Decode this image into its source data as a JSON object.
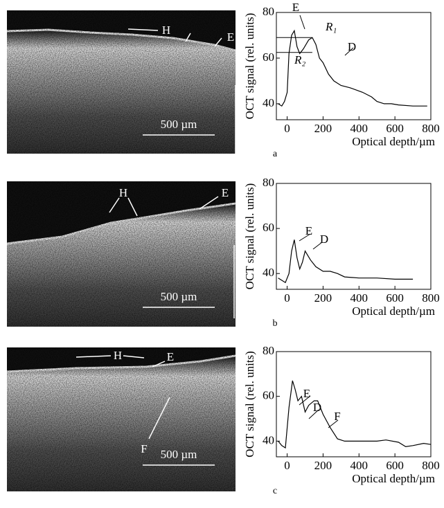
{
  "chart_data": [
    {
      "type": "line",
      "panel": "a",
      "xlabel": "Optical depth/µm",
      "ylabel": "OCT signal (rel. units)",
      "xlim": [
        -60,
        800
      ],
      "ylim": [
        33,
        80
      ],
      "xticks": [
        0,
        200,
        400,
        600,
        800
      ],
      "yticks": [
        40,
        60,
        80
      ],
      "series": [
        {
          "color": "#000000",
          "x": [
            -50,
            -30,
            -15,
            0,
            10,
            25,
            40,
            55,
            70,
            90,
            120,
            140,
            160,
            180,
            200,
            230,
            260,
            300,
            350,
            420,
            470,
            500,
            540,
            580,
            620,
            700,
            780
          ],
          "values": [
            40,
            39,
            41,
            45,
            62,
            70,
            72,
            65,
            62,
            64,
            68,
            69,
            66,
            60,
            58,
            53,
            50,
            48,
            47,
            45,
            43,
            41,
            40,
            40,
            39.5,
            39,
            39
          ]
        }
      ],
      "hlines": [
        {
          "label": "R₁",
          "value": 69
        },
        {
          "label": "R₂",
          "value": 62.5
        }
      ],
      "annotations": [
        "E",
        "D"
      ]
    },
    {
      "type": "line",
      "panel": "b",
      "xlabel": "Optical depth/µm",
      "ylabel": "OCT signal (rel. units)",
      "xlim": [
        -60,
        800
      ],
      "ylim": [
        33,
        80
      ],
      "xticks": [
        0,
        200,
        400,
        600,
        800
      ],
      "yticks": [
        40,
        60,
        80
      ],
      "series": [
        {
          "color": "#000000",
          "x": [
            -50,
            -30,
            -10,
            10,
            25,
            40,
            55,
            70,
            85,
            100,
            115,
            130,
            160,
            200,
            240,
            280,
            320,
            400,
            500,
            600,
            700
          ],
          "values": [
            38,
            37,
            36,
            40,
            50,
            55,
            47,
            42,
            45,
            50,
            48,
            46,
            43,
            41,
            41,
            40,
            38.5,
            38,
            38,
            37.5,
            37.5
          ]
        }
      ],
      "hlines": [],
      "annotations": [
        "E",
        "D"
      ]
    },
    {
      "type": "line",
      "panel": "c",
      "xlabel": "Optical depth/µm",
      "ylabel": "OCT signal (rel. units)",
      "xlim": [
        -60,
        800
      ],
      "ylim": [
        33,
        80
      ],
      "xticks": [
        0,
        200,
        400,
        600,
        800
      ],
      "yticks": [
        40,
        60,
        80
      ],
      "series": [
        {
          "color": "#000000",
          "x": [
            -50,
            -30,
            -10,
            10,
            30,
            45,
            60,
            80,
            100,
            120,
            150,
            170,
            200,
            240,
            280,
            320,
            400,
            500,
            550,
            620,
            660,
            700,
            760,
            800
          ],
          "values": [
            40,
            38,
            37,
            55,
            67,
            63,
            58,
            60,
            53,
            56,
            58,
            58,
            52,
            46,
            41,
            40,
            40,
            40,
            40.5,
            39.5,
            37.5,
            38,
            39,
            38.5
          ]
        }
      ],
      "hlines": [],
      "annotations": [
        "E",
        "D",
        "F"
      ]
    }
  ],
  "images": [
    {
      "labels": [
        "H",
        "E"
      ],
      "scale": "500 µm"
    },
    {
      "labels": [
        "H",
        "E"
      ],
      "scale": "500 µm"
    },
    {
      "labels": [
        "H",
        "E",
        "F"
      ],
      "scale": "500 µm"
    }
  ]
}
